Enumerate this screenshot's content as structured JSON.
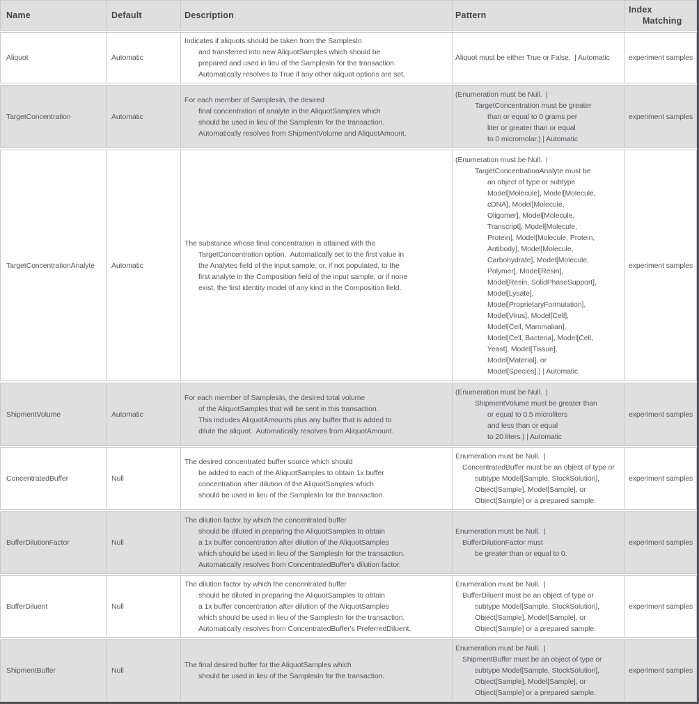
{
  "colors": {
    "header_bg": "#dfdfdf",
    "shaded_row_bg": "#dfdfdf",
    "cell_border": "#c9c9c9",
    "dark_edge": "#53545c",
    "body_text": "#55565b",
    "header_text": "#454545"
  },
  "table": {
    "header": {
      "name": [
        {
          "t": "Name",
          "i": 0
        }
      ],
      "default": [
        {
          "t": "Default",
          "i": 0
        }
      ],
      "description": [
        {
          "t": "Description",
          "i": 0
        }
      ],
      "pattern": [
        {
          "t": "Pattern",
          "i": 0
        }
      ],
      "index": [
        {
          "t": "Index",
          "i": 0
        },
        {
          "t": "Matching",
          "i": 2
        }
      ]
    },
    "rows": [
      {
        "name": "Aliquot",
        "default": "Automatic",
        "description": [
          {
            "t": "Indicates if aliquots should be taken from the SamplesIn",
            "i": 0
          },
          {
            "t": "and transferred into new AliquotSamples which should be",
            "i": 2
          },
          {
            "t": "prepared and used in lieu of the SamplesIn for the transaction.",
            "i": 2
          },
          {
            "t": "Automatically resolves to True if any other aliquot options are set.",
            "i": 2
          }
        ],
        "pattern": [
          {
            "t": "Aliquot must be either True or False.  | Automatic",
            "i": 0
          }
        ],
        "index": "experiment samples"
      },
      {
        "name": "TargetConcentration",
        "default": "Automatic",
        "description": [
          {
            "t": "For each member of SamplesIn, the desired",
            "i": 0
          },
          {
            "t": "final concentration of analyte in the AliquotSamples which",
            "i": 2
          },
          {
            "t": "should be used in lieu of the SamplesIn for the transaction.",
            "i": 2
          },
          {
            "t": "Automatically resolves from ShipmentVolume and AliquotAmount.",
            "i": 2
          }
        ],
        "pattern": [
          {
            "t": "(Enumeration must be Null.  |",
            "i": 0
          },
          {
            "t": "TargetConcentration must be greater",
            "i": 3
          },
          {
            "t": "than or equal to 0 grams per",
            "i": 4
          },
          {
            "t": "liter or greater than or equal",
            "i": 4
          },
          {
            "t": "to 0 micromolar.) | Automatic",
            "i": 4
          }
        ],
        "index": "experiment samples"
      },
      {
        "name": "TargetConcentrationAnalyte",
        "default": "Automatic",
        "description": [
          {
            "t": "The substance whose final concentration is attained with the",
            "i": 0
          },
          {
            "t": "TargetConcentration option.  Automatically set to the first value in",
            "i": 2
          },
          {
            "t": "the Analytes field of the input sample, or, if not populated, to the",
            "i": 2
          },
          {
            "t": "first analyte in the Composition field of the input sample, or if none",
            "i": 2
          },
          {
            "t": "exist, the first identity model of any kind in the Composition field.",
            "i": 2
          }
        ],
        "pattern": [
          {
            "t": "(Enumeration must be Null.  |",
            "i": 0
          },
          {
            "t": "TargetConcentrationAnalyte must be",
            "i": 3
          },
          {
            "t": "an object of type or subtype",
            "i": 4
          },
          {
            "t": "Model[Molecule], Model[Molecule,",
            "i": 4
          },
          {
            "t": "cDNA], Model[Molecule,",
            "i": 4
          },
          {
            "t": "Oligomer], Model[Molecule,",
            "i": 4
          },
          {
            "t": "Transcript], Model[Molecule,",
            "i": 4
          },
          {
            "t": "Protein], Model[Molecule, Protein,",
            "i": 4
          },
          {
            "t": "Antibody], Model[Molecule,",
            "i": 4
          },
          {
            "t": "Carbohydrate], Model[Molecule,",
            "i": 4
          },
          {
            "t": "Polymer], Model[Resin],",
            "i": 4
          },
          {
            "t": "Model[Resin, SolidPhaseSupport],",
            "i": 4
          },
          {
            "t": "Model[Lysate],",
            "i": 4
          },
          {
            "t": "Model[ProprietaryFormulation],",
            "i": 4
          },
          {
            "t": "Model[Virus], Model[Cell],",
            "i": 4
          },
          {
            "t": "Model[Cell, Mammalian],",
            "i": 4
          },
          {
            "t": "Model[Cell, Bacteria], Model[Cell,",
            "i": 4
          },
          {
            "t": "Yeast], Model[Tissue],",
            "i": 4
          },
          {
            "t": "Model[Material], or",
            "i": 4
          },
          {
            "t": "Model[Species].) | Automatic",
            "i": 4
          }
        ],
        "index": "experiment samples"
      },
      {
        "name": "ShipmentVolume",
        "default": "Automatic",
        "description": [
          {
            "t": "For each member of SamplesIn, the desired total volume",
            "i": 0
          },
          {
            "t": "of the AliquotSamples that will be sent in this transaction.",
            "i": 2
          },
          {
            "t": "This includes AliquotAmounts plus any buffer that is added to",
            "i": 2
          },
          {
            "t": "dilute the aliquot.  Automatically resolves from AliquotAmount.",
            "i": 2
          }
        ],
        "pattern": [
          {
            "t": "(Enumeration must be Null.  |",
            "i": 0
          },
          {
            "t": "ShipmentVolume must be greater than",
            "i": 3
          },
          {
            "t": "or equal to 0.5 microliters",
            "i": 4
          },
          {
            "t": "and less than or equal",
            "i": 4
          },
          {
            "t": "to 20 liters.) | Automatic",
            "i": 4
          }
        ],
        "index": "experiment samples"
      },
      {
        "name": "ConcentratedBuffer",
        "default": "Null",
        "description": [
          {
            "t": "The desired concentrated buffer source which should",
            "i": 0
          },
          {
            "t": "be added to each of the AliquotSamples to obtain 1x buffer",
            "i": 2
          },
          {
            "t": "concentration after dilution of the AliquotSamples which",
            "i": 2
          },
          {
            "t": "should be used in lieu of the SamplesIn for the transaction.",
            "i": 2
          }
        ],
        "pattern": [
          {
            "t": "Enumeration must be Null.  |",
            "i": 0
          },
          {
            "t": "ConcentratedBuffer must be an object of type or",
            "i": 1
          },
          {
            "t": "subtype Model[Sample, StockSolution],",
            "i": 3
          },
          {
            "t": "Object[Sample], Model[Sample], or",
            "i": 3
          },
          {
            "t": "Object[Sample] or a prepared sample.",
            "i": 3
          }
        ],
        "index": "experiment samples"
      },
      {
        "name": "BufferDilutionFactor",
        "default": "Null",
        "description": [
          {
            "t": "The dilution factor by which the concentrated buffer",
            "i": 0
          },
          {
            "t": "should be diluted in preparing the AliquotSamples to obtain",
            "i": 2
          },
          {
            "t": "a 1x buffer concentration after dilution of the AliquotSamples",
            "i": 2
          },
          {
            "t": "which should be used in lieu of the SamplesIn for the transaction.",
            "i": 2
          },
          {
            "t": "Automatically resolves from ConcentratedBuffer's dilution factor.",
            "i": 2
          }
        ],
        "pattern": [
          {
            "t": "Enumeration must be Null.  |",
            "i": 0
          },
          {
            "t": "BufferDilutionFactor must",
            "i": 1
          },
          {
            "t": "be greater than or equal to 0.",
            "i": 3
          }
        ],
        "index": "experiment samples"
      },
      {
        "name": "BufferDiluent",
        "default": "Null",
        "description": [
          {
            "t": "The dilution factor by which the concentrated buffer",
            "i": 0
          },
          {
            "t": "should be diluted in preparing the AliquotSamples to obtain",
            "i": 2
          },
          {
            "t": "a 1x buffer concentration after dilution of the AliquotSamples",
            "i": 2
          },
          {
            "t": "which should be used in lieu of the SamplesIn for the transaction.",
            "i": 2
          },
          {
            "t": "Automatically resolves from ConcentratedBuffer's PreferredDiluent.",
            "i": 2
          }
        ],
        "pattern": [
          {
            "t": "Enumeration must be Null.  |",
            "i": 0
          },
          {
            "t": "BufferDiluent must be an object of type or",
            "i": 1
          },
          {
            "t": "subtype Model[Sample, StockSolution],",
            "i": 3
          },
          {
            "t": "Object[Sample], Model[Sample], or",
            "i": 3
          },
          {
            "t": "Object[Sample] or a prepared sample.",
            "i": 3
          }
        ],
        "index": "experiment samples"
      },
      {
        "name": "ShipmentBuffer",
        "default": "Null",
        "description": [
          {
            "t": "The final desired buffer for the AliquotSamples which",
            "i": 0
          },
          {
            "t": "should be used in lieu of the SamplesIn for the transaction.",
            "i": 2
          }
        ],
        "pattern": [
          {
            "t": "Enumeration must be Null.  |",
            "i": 0
          },
          {
            "t": "ShipmentBuffer must be an object of type or",
            "i": 1
          },
          {
            "t": "subtype Model[Sample, StockSolution],",
            "i": 3
          },
          {
            "t": "Object[Sample], Model[Sample], or",
            "i": 3
          },
          {
            "t": "Object[Sample] or a prepared sample.",
            "i": 3
          }
        ],
        "index": "experiment samples"
      }
    ]
  }
}
